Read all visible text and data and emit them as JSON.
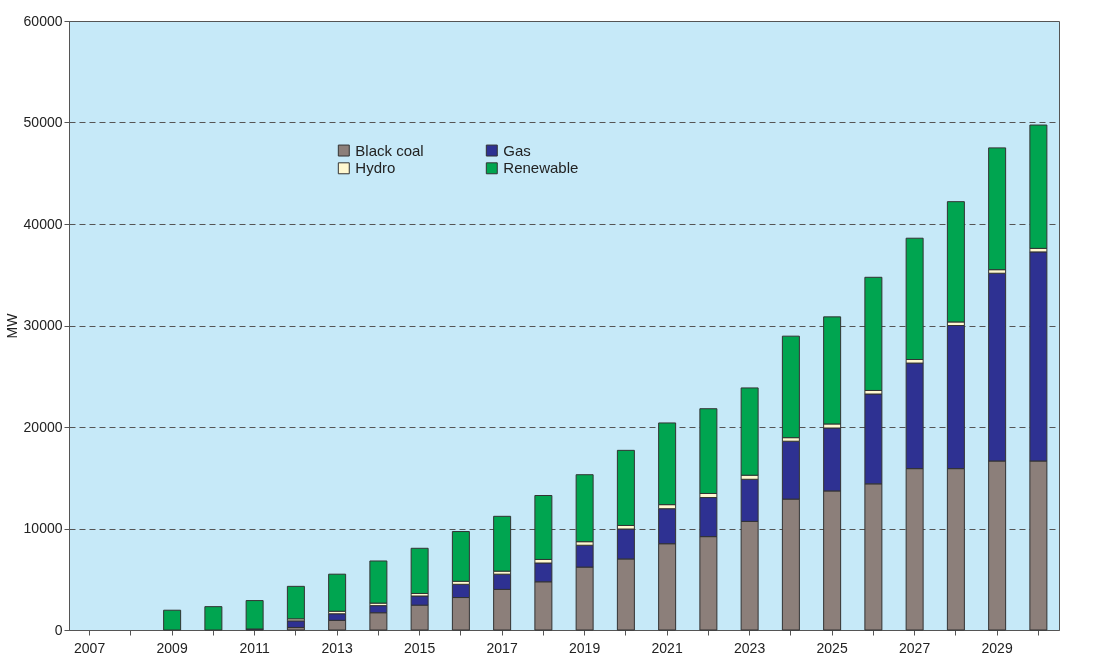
{
  "chart_data": {
    "type": "bar",
    "stacked": true,
    "ylabel": "MW",
    "categories": [
      "2007",
      null,
      "2009",
      null,
      "2011",
      null,
      "2013",
      null,
      "2015",
      null,
      "2017",
      null,
      "2019",
      null,
      "2021",
      null,
      "2023",
      null,
      "2025",
      null,
      "2027",
      null,
      "2029",
      null
    ],
    "series": [
      {
        "name": "Black coal",
        "color": "#8c7f7a",
        "values": [
          null,
          null,
          null,
          null,
          null,
          250,
          950,
          1700,
          2450,
          3200,
          4000,
          4750,
          6200,
          7000,
          8500,
          9200,
          10700,
          12900,
          13700,
          14400,
          15900,
          15900,
          16650,
          16650
        ]
      },
      {
        "name": "Gas",
        "color": "#2e3192",
        "values": [
          null,
          null,
          null,
          null,
          100,
          650,
          650,
          700,
          900,
          1300,
          1500,
          1850,
          2150,
          2950,
          3450,
          3850,
          4150,
          5700,
          6200,
          8850,
          10400,
          14100,
          18500,
          20600
        ]
      },
      {
        "name": "Hydro",
        "color": "#fff8d0",
        "values": [
          null,
          null,
          null,
          null,
          null,
          200,
          250,
          250,
          250,
          300,
          300,
          350,
          350,
          350,
          400,
          400,
          400,
          350,
          400,
          350,
          350,
          350,
          350,
          350
        ]
      },
      {
        "name": "Renewable",
        "color": "#00a550",
        "values": [
          null,
          null,
          1950,
          2300,
          2800,
          3200,
          3650,
          4150,
          4450,
          4900,
          5400,
          6300,
          6600,
          7400,
          8050,
          8350,
          8600,
          10000,
          10550,
          11150,
          11950,
          11850,
          12000,
          12150
        ]
      }
    ],
    "ylim": [
      0,
      60000
    ],
    "yticks": [
      0,
      10000,
      20000,
      30000,
      40000,
      50000,
      60000
    ],
    "grid": "y",
    "legend": "top left"
  }
}
